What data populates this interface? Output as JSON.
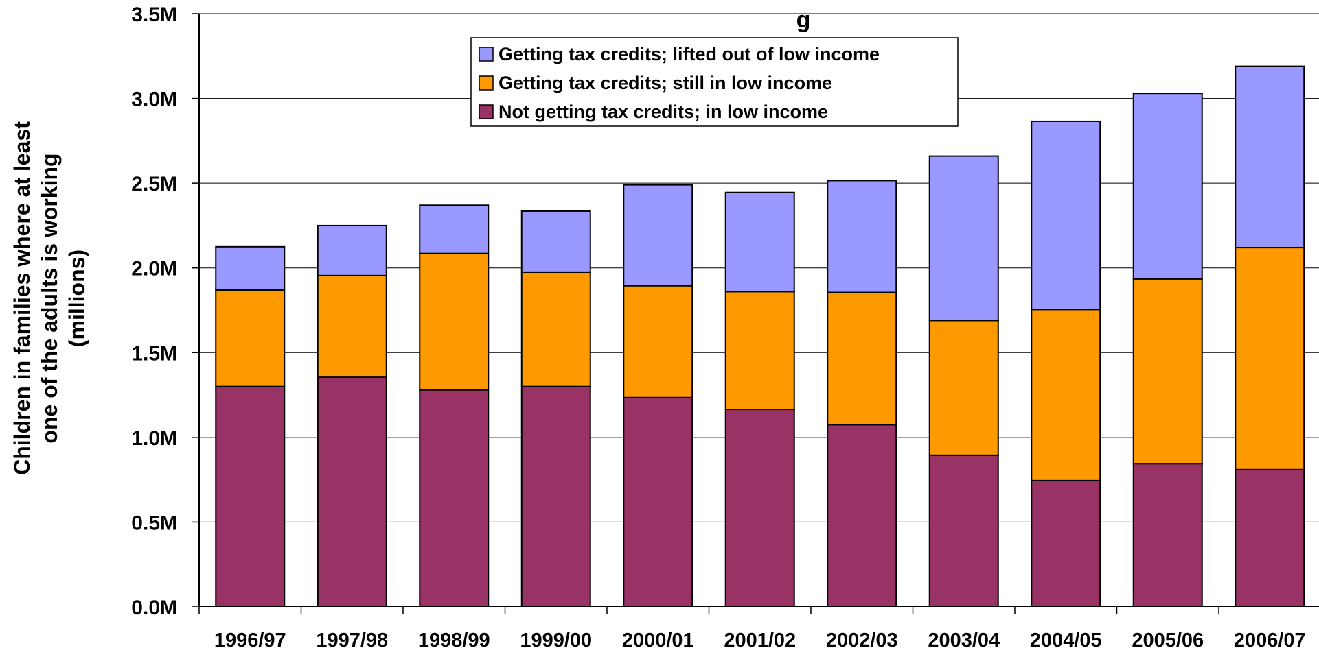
{
  "chart_data": {
    "type": "bar",
    "stacked": true,
    "title": "",
    "title_visible_fragment": "g",
    "xlabel": "",
    "ylabel_lines": [
      "Children in families where at least",
      "one of the adults is working",
      "(millions)"
    ],
    "ylim": [
      0,
      3.5
    ],
    "yticks": [
      {
        "value": 0.0,
        "label": "0.0M"
      },
      {
        "value": 0.5,
        "label": "0.5M"
      },
      {
        "value": 1.0,
        "label": "1.0M"
      },
      {
        "value": 1.5,
        "label": "1.5M"
      },
      {
        "value": 2.0,
        "label": "2.0M"
      },
      {
        "value": 2.5,
        "label": "2.5M"
      },
      {
        "value": 3.0,
        "label": "3.0M"
      },
      {
        "value": 3.5,
        "label": "3.5M"
      }
    ],
    "grid": true,
    "legend_position": "top-center",
    "categories": [
      "1996/97",
      "1997/98",
      "1998/99",
      "1999/00",
      "2000/01",
      "2001/02",
      "2002/03",
      "2003/04",
      "2004/05",
      "2005/06",
      "2006/07"
    ],
    "series": [
      {
        "name": "Not getting tax credits; in low income",
        "color": "#993366",
        "values": [
          1.3,
          1.355,
          1.28,
          1.3,
          1.235,
          1.165,
          1.075,
          0.895,
          0.745,
          0.845,
          0.81
        ]
      },
      {
        "name": "Getting tax credits; still in low income",
        "color": "#FF9900",
        "values": [
          0.57,
          0.6,
          0.805,
          0.675,
          0.66,
          0.695,
          0.78,
          0.795,
          1.01,
          1.09,
          1.31
        ]
      },
      {
        "name": "Getting tax credits; lifted out of low income",
        "color": "#9999FF",
        "values": [
          0.255,
          0.295,
          0.285,
          0.36,
          0.595,
          0.585,
          0.66,
          0.97,
          1.11,
          1.095,
          1.07
        ]
      }
    ],
    "legend_order": [
      2,
      1,
      0
    ]
  }
}
